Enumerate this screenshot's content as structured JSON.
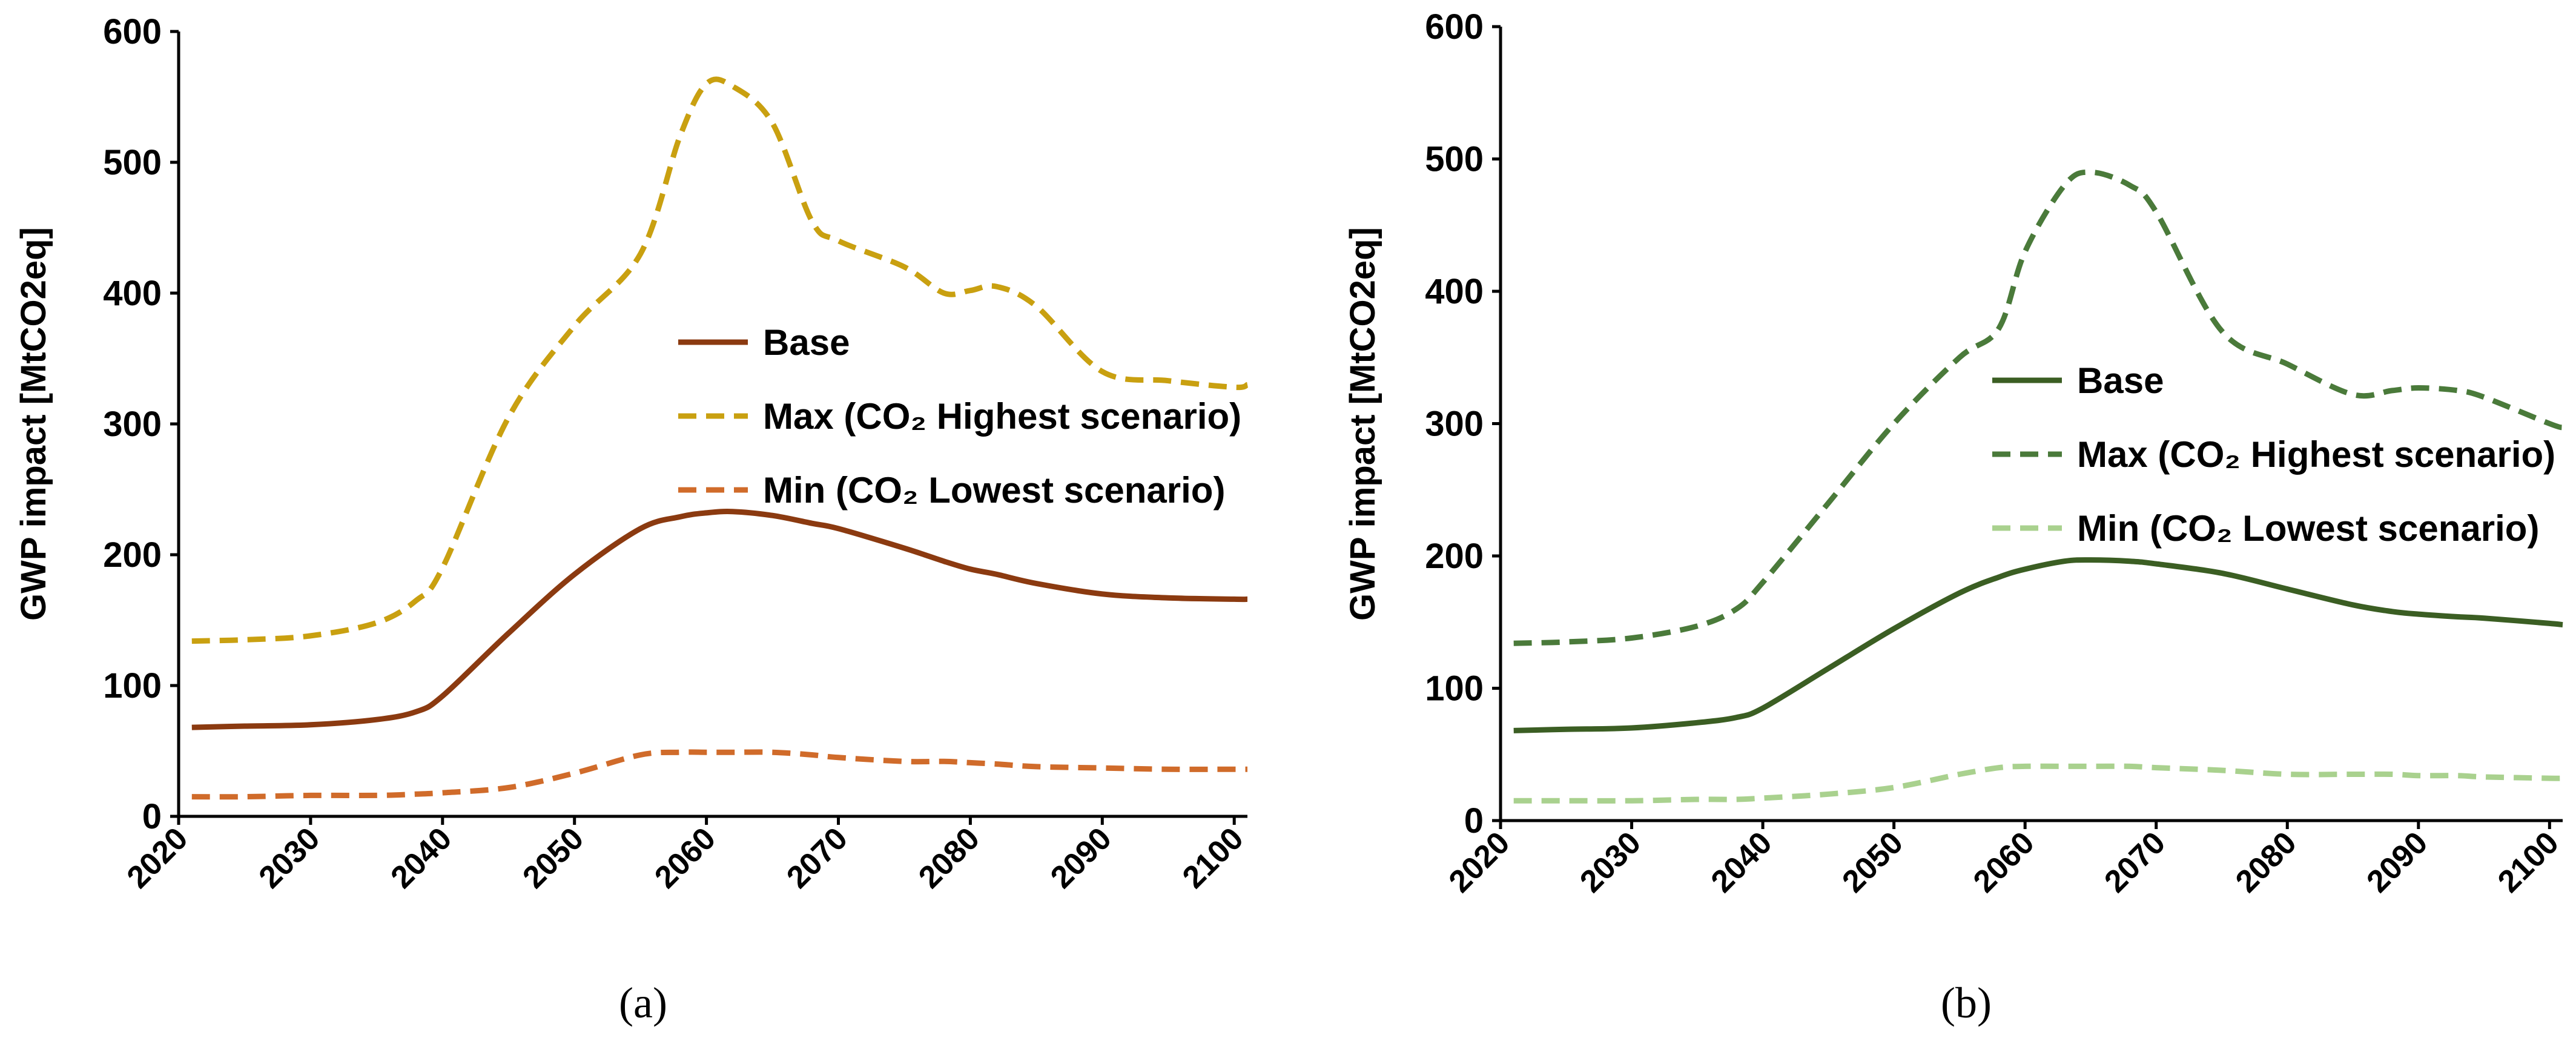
{
  "chart_data": [
    {
      "type": "line",
      "panel_label": "(a)",
      "ylabel": "GWP impact [MtCO2eq]",
      "xlabel": "",
      "xlim": [
        2020,
        2101
      ],
      "ylim": [
        0,
        600
      ],
      "xticks": [
        2020,
        2030,
        2040,
        2050,
        2060,
        2070,
        2080,
        2090,
        2100
      ],
      "yticks": [
        0,
        100,
        200,
        300,
        400,
        500,
        600
      ],
      "grid": false,
      "legend_position": "center",
      "x": [
        2021,
        2025,
        2030,
        2035,
        2038,
        2040,
        2045,
        2050,
        2055,
        2058,
        2060,
        2062,
        2065,
        2068,
        2070,
        2075,
        2078,
        2080,
        2082,
        2085,
        2090,
        2095,
        2100,
        2101
      ],
      "series": [
        {
          "name": "Base",
          "style": "solid",
          "color": "#8b3a10",
          "values": [
            68,
            69,
            70,
            74,
            80,
            92,
            140,
            185,
            220,
            229,
            232,
            233,
            230,
            224,
            220,
            205,
            195,
            189,
            185,
            178,
            170,
            167,
            166,
            166
          ]
        },
        {
          "name": "Max (CO₂ Highest scenario)",
          "style": "dashed",
          "color": "#c9a010",
          "values": [
            134,
            135,
            138,
            148,
            165,
            190,
            305,
            375,
            430,
            520,
            560,
            558,
            530,
            455,
            440,
            420,
            400,
            402,
            405,
            390,
            340,
            333,
            328,
            330
          ]
        },
        {
          "name": "Min (CO₂ Lowest scenario)",
          "style": "dashed",
          "color": "#d06b2a",
          "values": [
            15,
            15,
            16,
            16,
            17,
            18,
            22,
            33,
            47,
            49,
            49,
            49,
            49,
            47,
            45,
            42,
            42,
            41,
            40,
            38,
            37,
            36,
            36,
            36
          ]
        }
      ]
    },
    {
      "type": "line",
      "panel_label": "(b)",
      "ylabel": "GWP impact [MtCO2eq]",
      "xlabel": "",
      "xlim": [
        2020,
        2101
      ],
      "ylim": [
        0,
        600
      ],
      "xticks": [
        2020,
        2030,
        2040,
        2050,
        2060,
        2070,
        2080,
        2090,
        2100
      ],
      "yticks": [
        0,
        100,
        200,
        300,
        400,
        500,
        600
      ],
      "grid": false,
      "legend_position": "center-right",
      "x": [
        2021,
        2025,
        2030,
        2035,
        2038,
        2040,
        2045,
        2050,
        2055,
        2058,
        2060,
        2063,
        2065,
        2068,
        2070,
        2075,
        2080,
        2085,
        2088,
        2090,
        2093,
        2095,
        2100,
        2101
      ],
      "series": [
        {
          "name": "Base",
          "style": "solid",
          "color": "#3b5e23",
          "values": [
            68,
            69,
            70,
            74,
            78,
            85,
            115,
            145,
            172,
            184,
            190,
            196,
            197,
            196,
            194,
            187,
            175,
            163,
            158,
            156,
            154,
            153,
            149,
            148
          ]
        },
        {
          "name": "Max (CO₂ Highest scenario)",
          "style": "dashed",
          "color": "#4a7a3a",
          "values": [
            134,
            135,
            138,
            147,
            160,
            180,
            240,
            300,
            350,
            372,
            430,
            480,
            490,
            480,
            460,
            370,
            345,
            322,
            325,
            327,
            325,
            320,
            300,
            297
          ]
        },
        {
          "name": "Min (CO₂ Lowest scenario)",
          "style": "dashed",
          "color": "#a9d18e",
          "values": [
            15,
            15,
            15,
            16,
            16,
            17,
            20,
            25,
            35,
            40,
            41,
            41,
            41,
            41,
            40,
            38,
            35,
            35,
            35,
            34,
            34,
            33,
            32,
            32
          ]
        }
      ]
    }
  ]
}
